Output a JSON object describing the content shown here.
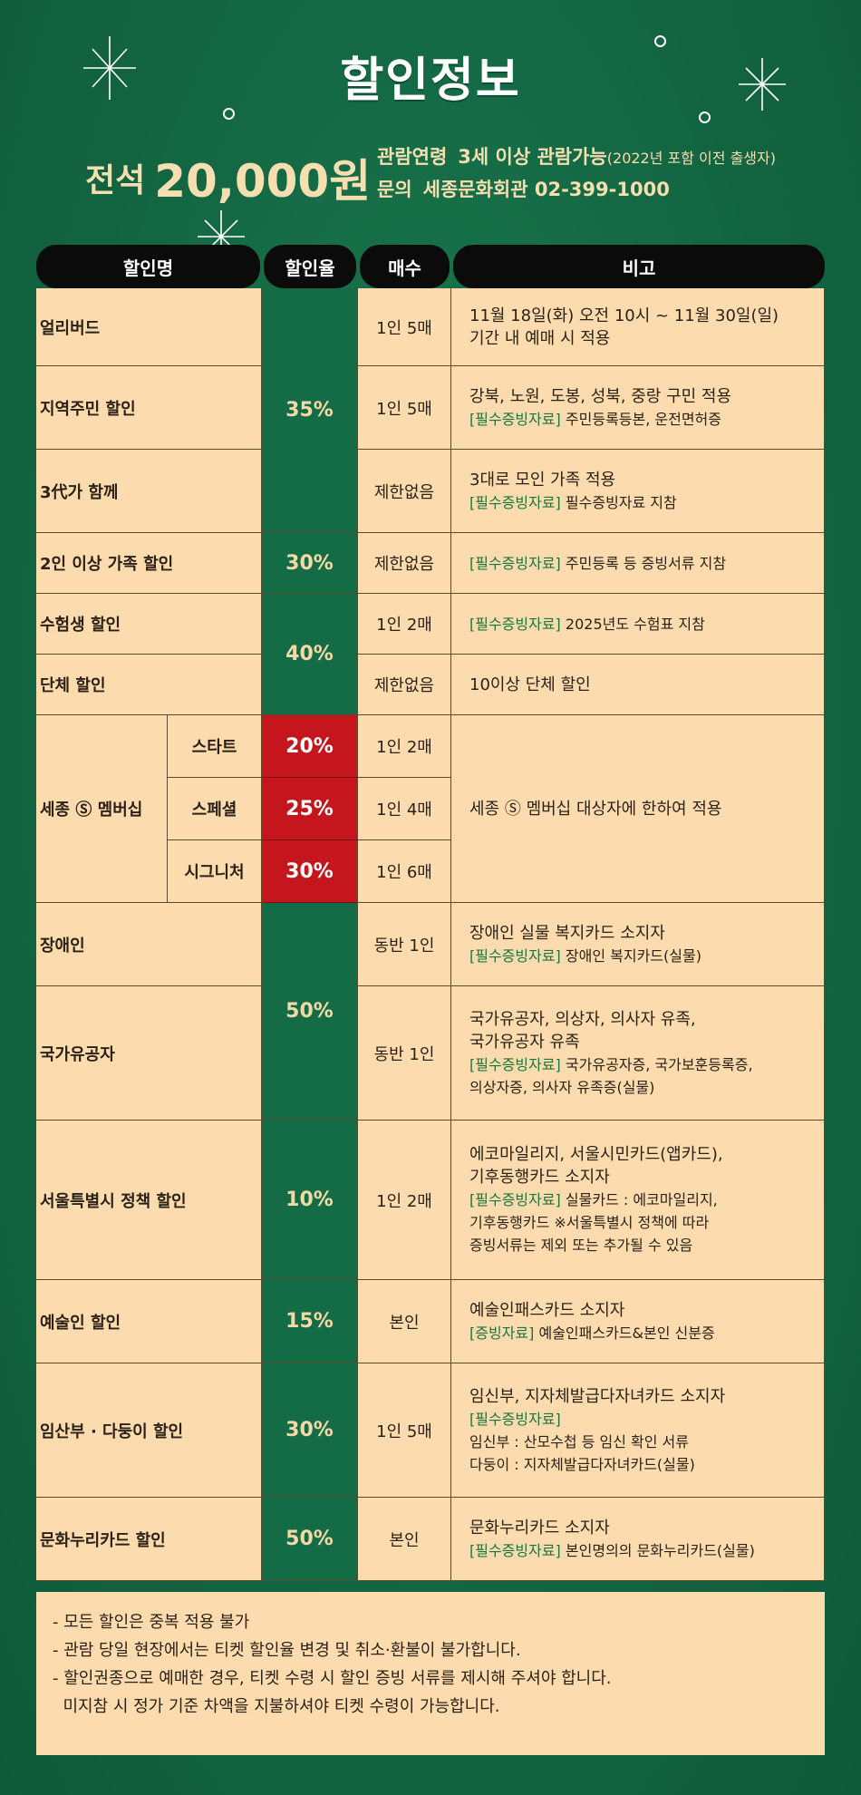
{
  "header": {
    "title": "할인정보",
    "price_label": "전석",
    "price_value": "20,000원",
    "age_key": "관람연령",
    "age_value": "3세 이상 관람가능",
    "age_note": "(2022년 포함 이전 출생자)",
    "contact_key": "문의",
    "contact_value": "세종문화회관 02-399-1000"
  },
  "table": {
    "headers": [
      "할인명",
      "할인율",
      "매수",
      "비고"
    ],
    "rows": {
      "r1": {
        "name": "얼리버드",
        "count": "1인 5매",
        "note1": "11월 18일(화) 오전 10시 ~ 11월 30일(일)",
        "note2": "기간 내 예매 시 적용"
      },
      "r2": {
        "name": "지역주민 할인",
        "count": "1인 5매",
        "note1": "강북, 노원, 도봉, 성북, 중랑 구민 적용",
        "tag": "[필수증빙자료]",
        "note2": "주민등록등본, 운전면허증"
      },
      "r3": {
        "name": "3代가 함께",
        "count": "제한없음",
        "note1": "3대로 모인 가족 적용",
        "tag": "[필수증빙자료]",
        "note2": "필수증빙자료 지참"
      },
      "r4": {
        "name": "2인 이상 가족 할인",
        "rate": "30%",
        "count": "제한없음",
        "tag": "[필수증빙자료]",
        "note2": "주민등록 등 증빙서류 지참"
      },
      "r5": {
        "name": "수험생 할인",
        "count": "1인 2매",
        "tag": "[필수증빙자료]",
        "note2": "2025년도 수험표 지참"
      },
      "r6": {
        "name": "단체 할인",
        "count": "제한없음",
        "note1": "10이상 단체 할인"
      },
      "sejong": {
        "name": "세종 Ⓢ 멤버십",
        "note": "세종 Ⓢ 멤버십 대상자에 한하여 적용",
        "tiers": [
          {
            "tier": "스타트",
            "rate": "20%",
            "count": "1인 2매"
          },
          {
            "tier": "스페셜",
            "rate": "25%",
            "count": "1인 4매"
          },
          {
            "tier": "시그니처",
            "rate": "30%",
            "count": "1인 6매"
          }
        ]
      },
      "r8": {
        "name": "장애인",
        "count": "동반 1인",
        "note1": "장애인 실물 복지카드 소지자",
        "tag": "[필수증빙자료]",
        "note2": "장애인 복지카드(실물)"
      },
      "r9": {
        "name": "국가유공자",
        "count": "동반 1인",
        "note1": "국가유공자, 의상자, 의사자 유족,",
        "note1b": "국가유공자 유족",
        "tag": "[필수증빙자료]",
        "note2": "국가유공자증, 국가보훈등록증,",
        "note3": "의상자증, 의사자 유족증(실물)"
      },
      "r10": {
        "name": "서울특별시 정책 할인",
        "rate": "10%",
        "count": "1인 2매",
        "note1": "에코마일리지, 서울시민카드(앱카드),",
        "note1b": "기후동행카드 소지자",
        "tag": "[필수증빙자료]",
        "note2": "실물카드 : 에코마일리지,",
        "note3": "기후동행카드   ※서울특별시 정책에 따라",
        "note4": "증빙서류는 제외 또는 추가될 수 있음"
      },
      "r11": {
        "name": "예술인 할인",
        "rate": "15%",
        "count": "본인",
        "note1": "예술인패스카드 소지자",
        "tag": "[증빙자료]",
        "note2": "예술인패스카드&본인 신분증"
      },
      "r12": {
        "name": "임산부 · 다둥이 할인",
        "rate": "30%",
        "count": "1인 5매",
        "note1": "임신부, 지자체발급다자녀카드 소지자",
        "tag": "[필수증빙자료]",
        "note2": "임신부 : 산모수첩 등 임신 확인 서류",
        "note3": "다둥이 : 지자체발급다자녀카드(실물)"
      },
      "r13": {
        "name": "문화누리카드 할인",
        "rate": "50%",
        "count": "본인",
        "note1": "문화누리카드 소지자",
        "tag": "[필수증빙자료]",
        "note2": "본인명의의 문화누리카드(실물)"
      }
    },
    "merged_rates": {
      "r1_r3": "35%",
      "r5_r6": "40%",
      "r8_r9": "50%"
    }
  },
  "footnotes": [
    "- 모든 할인은 중복 적용 불가",
    "- 관람 당일 현장에서는 티켓 할인율 변경 및 취소·환불이 불가합니다.",
    "- 할인권종으로 예매한 경우, 티켓 수령 시 할인 증빙 서류를 제시해 주셔야 합니다.",
    "  미지참 시 정가 기준 차액을 지불하셔야 티켓 수령이 가능합니다."
  ],
  "colors": {
    "background": "#146b45",
    "table_bg": "#fcdcae",
    "rate_green": "#136c45",
    "rate_red": "#c4161c",
    "tag_green": "#19763f",
    "gold": "#f5deb0"
  }
}
